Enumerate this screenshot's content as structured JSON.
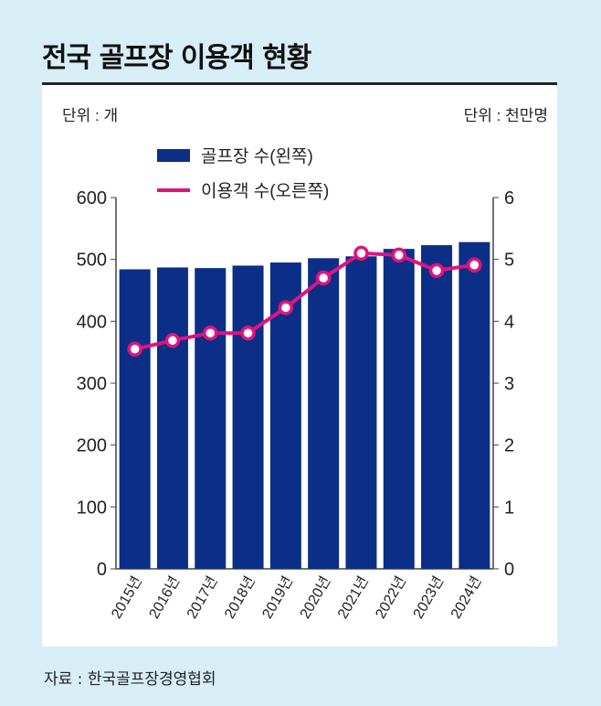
{
  "title": "전국 골프장 이용객 현황",
  "source": "자료 : 한국골프장경영협회",
  "chart_data": {
    "type": "bar+line",
    "title": "전국 골프장 이용객 현황",
    "left_unit": "단위 : 개",
    "right_unit": "단위 : 천만명",
    "categories": [
      "2015년",
      "2016년",
      "2017년",
      "2018년",
      "2019년",
      "2020년",
      "2021년",
      "2022년",
      "2023년",
      "2024년"
    ],
    "series": [
      {
        "name": "골프장 수(왼쪽)",
        "type": "bar",
        "axis": "left",
        "color": "#0b2f86",
        "values": [
          484,
          487,
          486,
          490,
          495,
          502,
          505,
          517,
          523,
          528
        ]
      },
      {
        "name": "이용객 수(오른쪽)",
        "type": "line",
        "axis": "right",
        "color": "#e0137f",
        "values": [
          3.55,
          3.69,
          3.81,
          3.81,
          4.22,
          4.7,
          5.1,
          5.07,
          4.82,
          4.91
        ]
      }
    ],
    "ylim_left": [
      0,
      600
    ],
    "yticks_left": [
      "0",
      "100",
      "200",
      "300",
      "400",
      "500",
      "600"
    ],
    "ylim_right": [
      0,
      6
    ],
    "yticks_right": [
      "0",
      "1",
      "2",
      "3",
      "4",
      "5",
      "6"
    ],
    "legend": "top-center",
    "grid": false
  }
}
